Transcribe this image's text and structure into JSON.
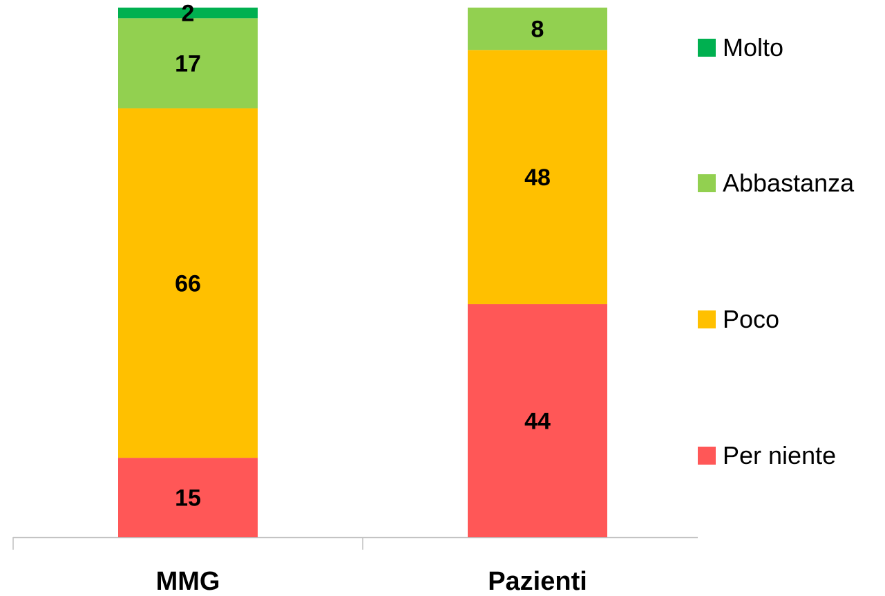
{
  "chart_data": {
    "type": "bar",
    "stacked": true,
    "categories": [
      "MMG",
      "Pazienti"
    ],
    "series": [
      {
        "name": "Per niente",
        "color": "#FF5757",
        "values": [
          15,
          44
        ]
      },
      {
        "name": "Poco",
        "color": "#FFC000",
        "values": [
          66,
          48
        ]
      },
      {
        "name": "Abbastanza",
        "color": "#92D050",
        "values": [
          17,
          8
        ]
      },
      {
        "name": "Molto",
        "color": "#00B050",
        "values": [
          2,
          0
        ]
      }
    ],
    "ylim": [
      0,
      100
    ],
    "grid": false,
    "legend_position": "right"
  }
}
